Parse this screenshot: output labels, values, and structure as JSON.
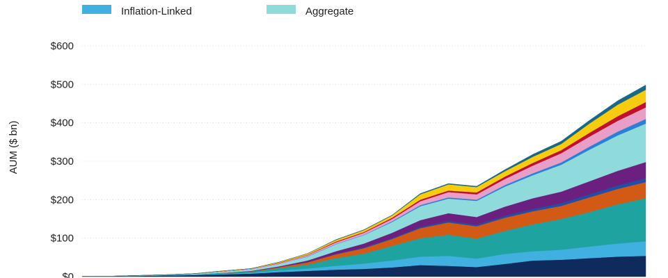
{
  "chart_data": {
    "type": "area",
    "stacked": true,
    "ylabel": "AUM ($ bn)",
    "ylim": [
      0,
      600
    ],
    "yticks": [
      0,
      100,
      200,
      300,
      400,
      500,
      600
    ],
    "ytick_labels": [
      "$0",
      "$100",
      "$200",
      "$300",
      "$400",
      "$500",
      "$600"
    ],
    "grid": true,
    "legend_placement": "top",
    "legend": [
      {
        "name": "Inflation-Linked",
        "color": "#3fb0e0"
      },
      {
        "name": "Aggregate",
        "color": "#8fdada"
      }
    ],
    "x": [
      0,
      1,
      2,
      3,
      4,
      5,
      6,
      7,
      8,
      9,
      10,
      11,
      12,
      13,
      14,
      15,
      16,
      17,
      18,
      19,
      20
    ],
    "series": [
      {
        "color": "#0f2a5c",
        "values": [
          1,
          1,
          2,
          3,
          4,
          6,
          8,
          12,
          15,
          18,
          20,
          24,
          30,
          28,
          25,
          33,
          42,
          44,
          48,
          52,
          54
        ]
      },
      {
        "name": "Inflation-Linked",
        "color": "#3fb0e0",
        "values": [
          0,
          0,
          0,
          0,
          1,
          1,
          2,
          4,
          6,
          10,
          14,
          18,
          22,
          26,
          22,
          26,
          24,
          26,
          30,
          34,
          38
        ]
      },
      {
        "color": "#1fa3a0",
        "values": [
          0,
          0,
          0,
          1,
          1,
          2,
          3,
          6,
          10,
          20,
          26,
          38,
          48,
          55,
          52,
          60,
          70,
          80,
          90,
          102,
          112
        ]
      },
      {
        "color": "#d35a14",
        "values": [
          0,
          0,
          0,
          0,
          0,
          1,
          1,
          3,
          6,
          10,
          14,
          18,
          26,
          32,
          32,
          34,
          34,
          34,
          38,
          40,
          42
        ]
      },
      {
        "color": "#1f4fa8",
        "values": [
          0,
          0,
          0,
          0,
          0,
          0,
          0,
          0,
          1,
          1,
          2,
          2,
          3,
          4,
          4,
          5,
          6,
          7,
          8,
          9,
          10
        ]
      },
      {
        "color": "#6b2080",
        "values": [
          0,
          0,
          0,
          0,
          0,
          0,
          1,
          2,
          4,
          7,
          10,
          14,
          18,
          20,
          20,
          24,
          28,
          30,
          34,
          38,
          42
        ]
      },
      {
        "name": "Aggregate",
        "color": "#8fdada",
        "values": [
          0,
          0,
          1,
          1,
          2,
          3,
          4,
          6,
          10,
          18,
          22,
          28,
          36,
          38,
          42,
          52,
          60,
          70,
          82,
          92,
          100
        ]
      },
      {
        "color": "#2c7fd6",
        "values": [
          0,
          0,
          0,
          0,
          0,
          0,
          0,
          0,
          1,
          1,
          1,
          2,
          3,
          3,
          3,
          4,
          5,
          6,
          8,
          10,
          12
        ]
      },
      {
        "color": "#e89ec6",
        "values": [
          0,
          0,
          0,
          0,
          0,
          1,
          1,
          2,
          3,
          4,
          5,
          6,
          10,
          14,
          14,
          16,
          20,
          24,
          26,
          28,
          30
        ]
      },
      {
        "color": "#c0102a",
        "values": [
          0,
          0,
          0,
          0,
          0,
          0,
          0,
          1,
          1,
          2,
          2,
          3,
          4,
          4,
          5,
          6,
          7,
          8,
          10,
          12,
          14
        ]
      },
      {
        "color": "#f5cc10",
        "values": [
          0,
          0,
          0,
          0,
          0,
          1,
          1,
          2,
          3,
          4,
          5,
          6,
          14,
          16,
          14,
          14,
          16,
          16,
          24,
          30,
          32
        ]
      },
      {
        "color": "#1a6888",
        "values": [
          0,
          0,
          0,
          0,
          0,
          0,
          0,
          0,
          0,
          1,
          1,
          1,
          2,
          2,
          2,
          4,
          6,
          7,
          8,
          10,
          12
        ]
      }
    ]
  }
}
